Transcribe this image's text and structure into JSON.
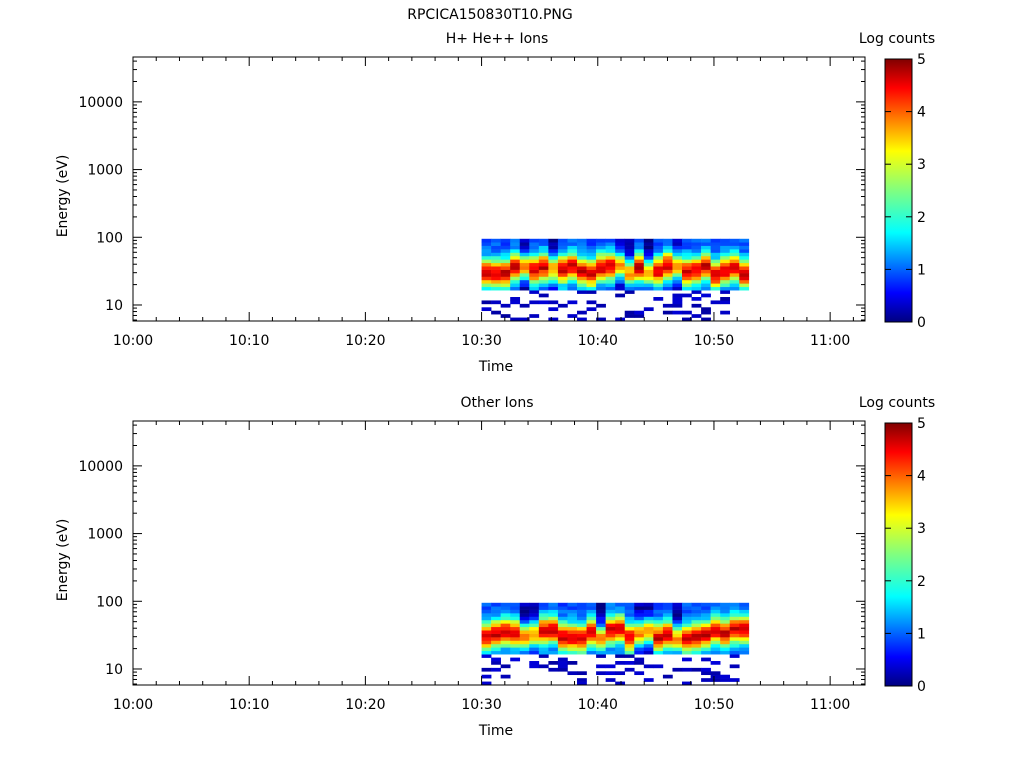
{
  "figure_title": "RPCICA150830T10.PNG",
  "chart_data": [
    {
      "type": "heatmap",
      "title": "H+ He++ Ions",
      "xlabel": "Time",
      "ylabel": "Energy (eV)",
      "x_ticks": [
        "10:00",
        "10:10",
        "10:20",
        "10:30",
        "10:40",
        "10:50",
        "11:00"
      ],
      "y_ticks": [
        "10",
        "100",
        "1000",
        "10000"
      ],
      "x_range": [
        "10:00",
        "11:03"
      ],
      "y_range": [
        5.8,
        46000
      ],
      "y_scale": "log",
      "colorbar": {
        "label": "Log counts",
        "ticks": [
          "0",
          "1",
          "2",
          "3",
          "4",
          "5"
        ],
        "range": [
          0,
          5
        ]
      },
      "data_extent": {
        "time_start": "10:30",
        "time_end": "10:53",
        "energy_min": 5.8,
        "energy_max": 95
      },
      "profile_seed": 7,
      "dip_columns": [
        4,
        7,
        14,
        15,
        17,
        20
      ]
    },
    {
      "type": "heatmap",
      "title": "Other Ions",
      "xlabel": "Time",
      "ylabel": "Energy (eV)",
      "x_ticks": [
        "10:00",
        "10:10",
        "10:20",
        "10:30",
        "10:40",
        "10:50",
        "11:00"
      ],
      "y_ticks": [
        "10",
        "100",
        "1000",
        "10000"
      ],
      "x_range": [
        "10:00",
        "11:03"
      ],
      "y_range": [
        5.8,
        46000
      ],
      "y_scale": "log",
      "colorbar": {
        "label": "Log counts",
        "ticks": [
          "0",
          "1",
          "2",
          "3",
          "4",
          "5"
        ],
        "range": [
          0,
          5
        ]
      },
      "data_extent": {
        "time_start": "10:30",
        "time_end": "10:53",
        "energy_min": 5.8,
        "energy_max": 95
      },
      "profile_seed": 19,
      "dip_columns": [
        4,
        5,
        12,
        16,
        17,
        20
      ]
    }
  ]
}
